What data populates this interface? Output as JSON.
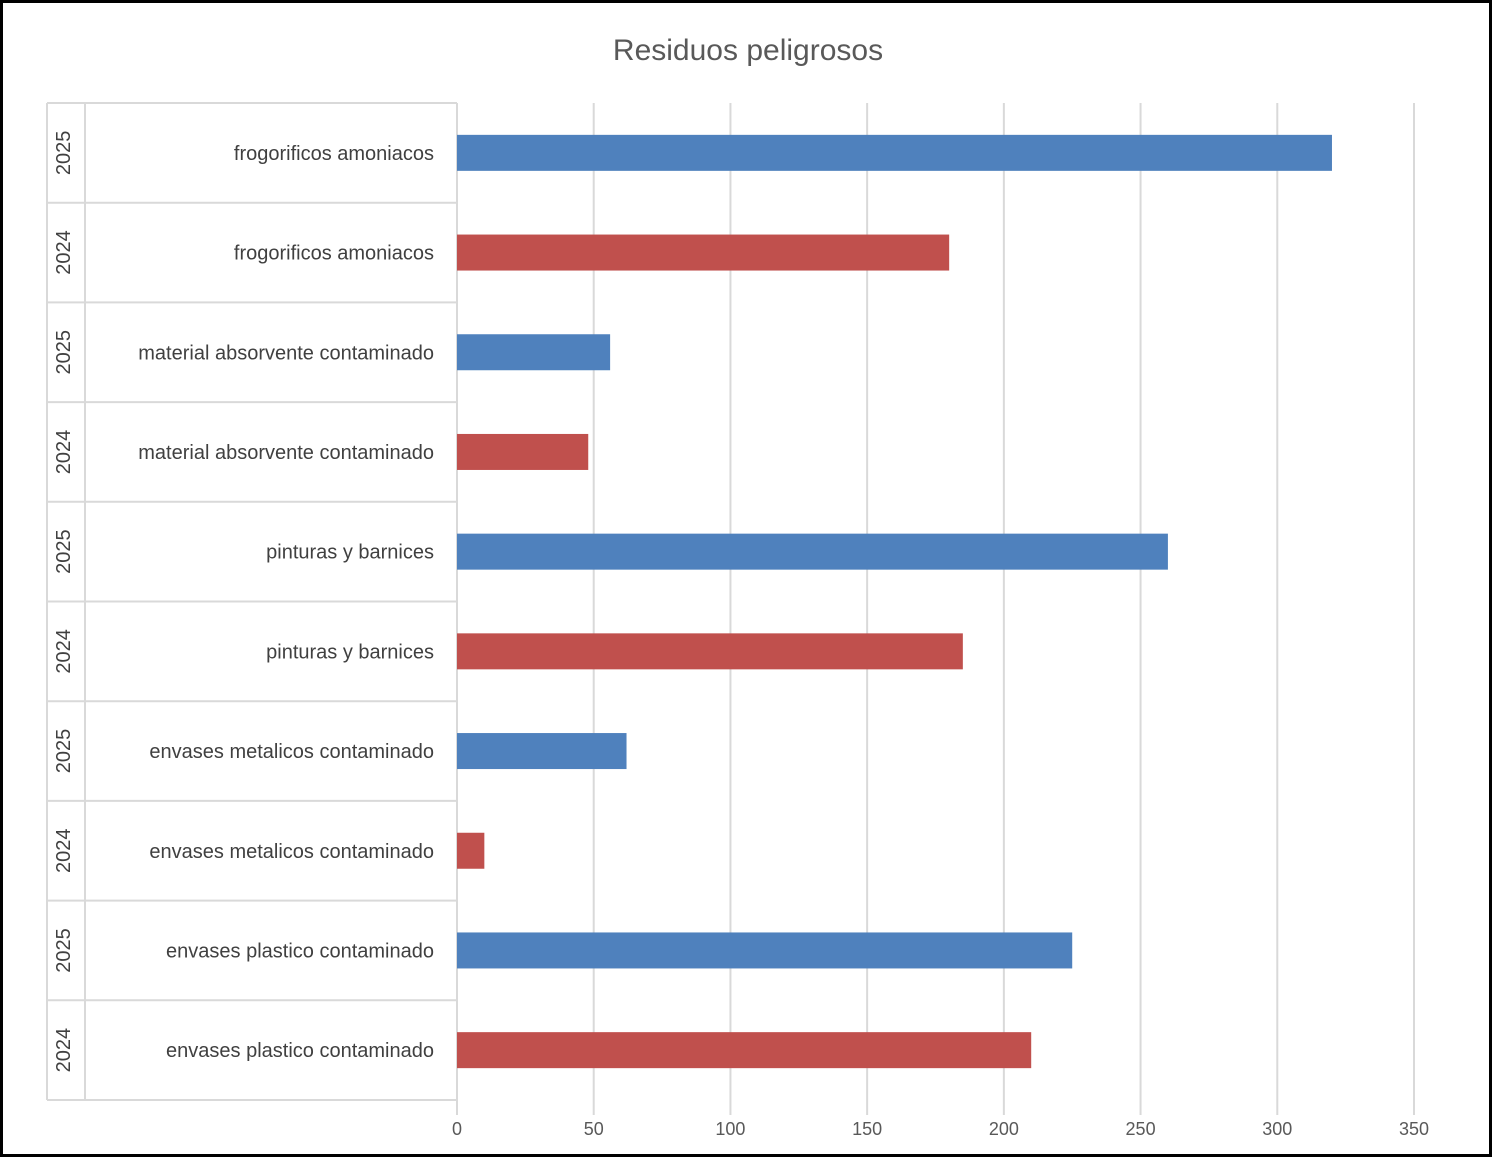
{
  "chart_data": {
    "type": "bar",
    "orientation": "horizontal",
    "title": "Residuos peligrosos",
    "xlabel": "",
    "ylabel": "",
    "xlim": [
      0,
      350
    ],
    "x_ticks": [
      "0",
      "50",
      "100",
      "150",
      "200",
      "250",
      "300",
      "350"
    ],
    "grid": true,
    "legend": "none",
    "colors": {
      "2025": "#4f81bd",
      "2024": "#c0504d"
    },
    "rows": [
      {
        "year": "2025",
        "category": "frogorificos amoniacos",
        "value": 320
      },
      {
        "year": "2024",
        "category": "frogorificos amoniacos",
        "value": 180
      },
      {
        "year": "2025",
        "category": "material absorvente contaminado",
        "value": 56
      },
      {
        "year": "2024",
        "category": "material absorvente contaminado",
        "value": 48
      },
      {
        "year": "2025",
        "category": "pinturas y barnices",
        "value": 260
      },
      {
        "year": "2024",
        "category": "pinturas y barnices",
        "value": 185
      },
      {
        "year": "2025",
        "category": "envases metalicos contaminado",
        "value": 62
      },
      {
        "year": "2024",
        "category": "envases metalicos contaminado",
        "value": 10
      },
      {
        "year": "2025",
        "category": "envases plastico contaminado",
        "value": 225
      },
      {
        "year": "2024",
        "category": "envases plastico contaminado",
        "value": 210
      }
    ]
  }
}
